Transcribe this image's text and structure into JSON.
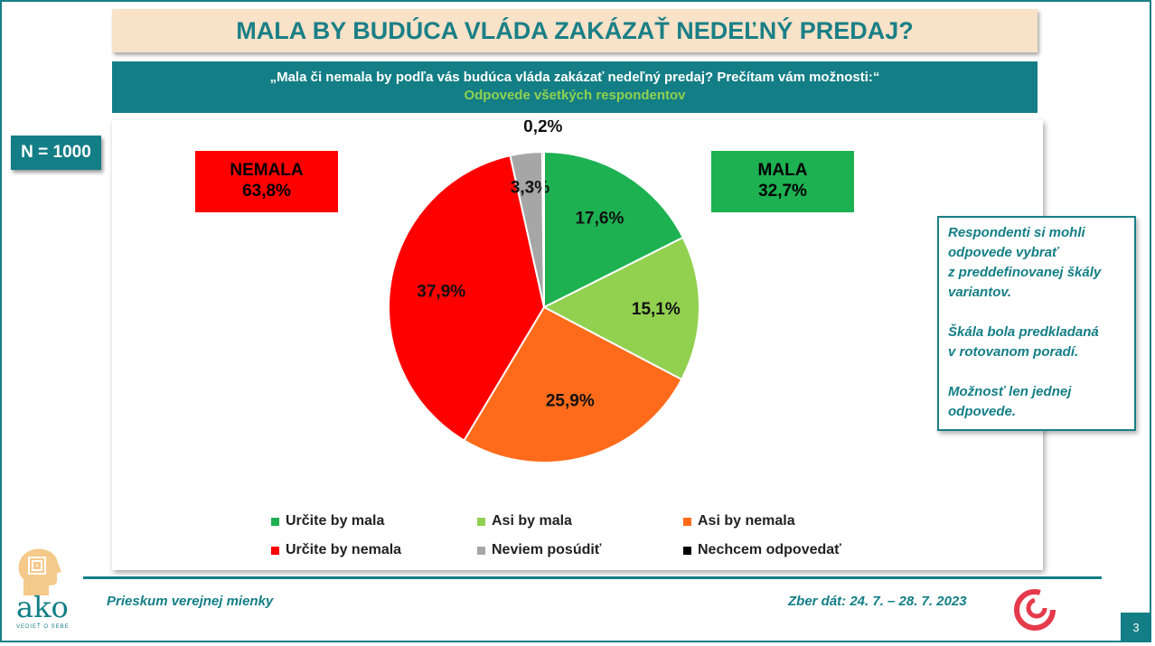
{
  "header": {
    "title": "MALA BY BUDÚCA VLÁDA ZAKÁZAŤ NEDEĽNÝ PREDAJ?",
    "question": "„Mala či nemala by podľa vás budúca vláda zakázať nedeľný predaj? Prečítam vám možnosti:“",
    "subtitle": "Odpovede všetkých respondentov"
  },
  "sample": {
    "label": "N = 1000"
  },
  "summary_boxes": {
    "nemala": {
      "label": "NEMALA",
      "value": "63,8%",
      "color": "#ff0000"
    },
    "mala": {
      "label": "MALA",
      "value": "32,7%",
      "color": "#1db152"
    }
  },
  "chart_data": {
    "type": "pie",
    "title": "MALA BY BUDÚCA VLÁDA ZAKÁZAŤ NEDEĽNÝ PREDAJ?",
    "unit": "%",
    "start_angle": "12 o'clock, clockwise",
    "slices": [
      {
        "name": "Určite by mala",
        "value": 17.6,
        "label": "17,6%",
        "color": "#1db152"
      },
      {
        "name": "Asi by mala",
        "value": 15.1,
        "label": "15,1%",
        "color": "#92d050"
      },
      {
        "name": "Asi by nemala",
        "value": 25.9,
        "label": "25,9%",
        "color": "#ff6b1a"
      },
      {
        "name": "Určite by nemala",
        "value": 37.9,
        "label": "37,9%",
        "color": "#ff0000"
      },
      {
        "name": "Neviem posúdiť",
        "value": 3.3,
        "label": "3,3%",
        "color": "#a6a6a6"
      },
      {
        "name": "Nechcem odpovedať",
        "value": 0.2,
        "label": "0,2%",
        "color": "#000000"
      }
    ],
    "legend_position": "bottom"
  },
  "note": {
    "paragraphs": [
      "Respondenti si mohli\nodpovede vybrať\nz preddefinovanej škály\nvariantov.",
      "Škála bola predkladaná\nv rotovanom poradí.",
      "Možnosť len jednej\nodpovede."
    ]
  },
  "footer": {
    "survey": "Prieskum verejnej mienky",
    "collection": "Zber dát: 24. 7. – 28. 7. 2023",
    "page": "3"
  },
  "logo": {
    "brand": "ako",
    "tagline": "VEDIEŤ O SEBE",
    "color": "#137e86",
    "accent": "#f5c98a"
  },
  "colors": {
    "teal": "#137e86",
    "title_bg": "#f8e2c8",
    "swirl": "#e53a4b"
  }
}
